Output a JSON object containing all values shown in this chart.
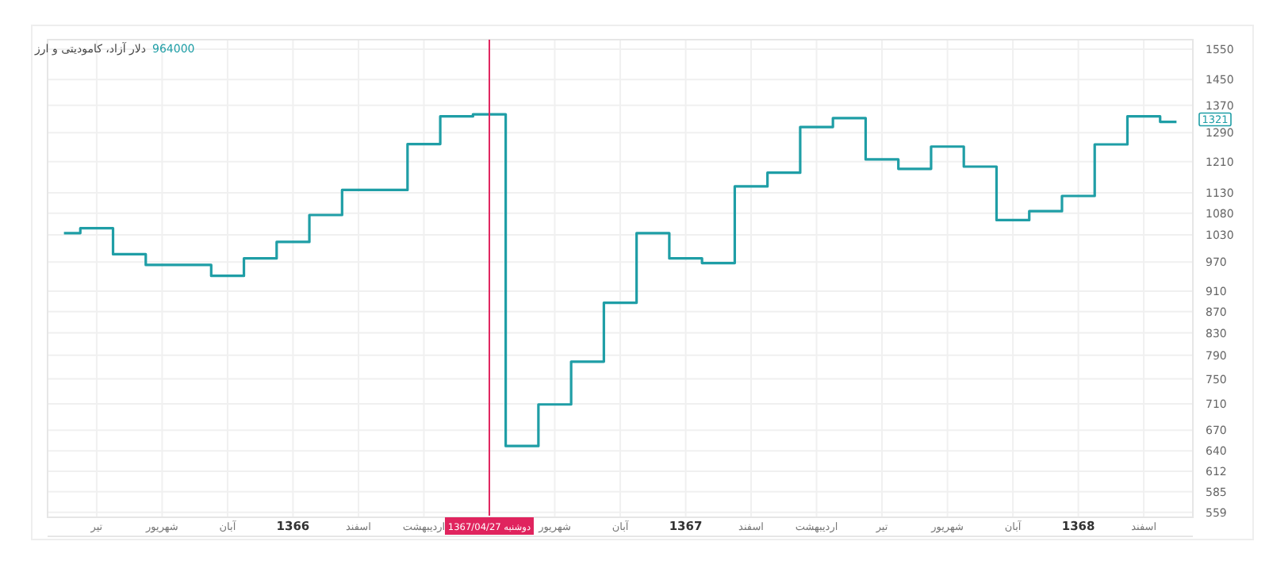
{
  "chart_data": {
    "type": "step",
    "title": "دلار آزاد، کامودیتی و ارز",
    "subtitle": "964000",
    "categories": [
      null,
      "تیر",
      null,
      "شهریور",
      null,
      "آبان",
      null,
      "1366",
      null,
      "اسفند",
      null,
      "اردیبهشت",
      null,
      "دوشنبه 1367/04/27",
      null,
      "شهریور",
      null,
      "آبان",
      null,
      "1367",
      null,
      "اسفند",
      null,
      "اردیبهشت",
      null,
      "تیر",
      null,
      "شهریور",
      null,
      "آبان",
      null,
      "1368",
      null,
      "اسفند",
      null
    ],
    "series": [
      {
        "color": "#1f9ea6",
        "values": [
          1034,
          1045,
          987,
          964,
          964,
          941,
          978,
          1014,
          1076,
          1137,
          1137,
          1258,
          1337,
          1343,
          647,
          709,
          779,
          887,
          1034,
          978,
          968,
          1146,
          1181,
          1306,
          1332,
          1216,
          1191,
          1251,
          1197,
          1064,
          1085,
          1122,
          1257,
          1337,
          1321
        ]
      }
    ],
    "ylim": [
      553,
      1583
    ],
    "log": "y",
    "yticks": [
      559,
      585,
      612,
      640,
      670,
      710,
      750,
      790,
      830,
      870,
      910,
      970,
      1030,
      1080,
      1130,
      1210,
      1290,
      1370,
      1450,
      1550
    ],
    "grid": true,
    "ref_lines": [
      {
        "axis": "x",
        "value": "دوشنبه 1367/04/27",
        "color": "#e0245e"
      }
    ],
    "annotations": [
      "1321"
    ]
  }
}
